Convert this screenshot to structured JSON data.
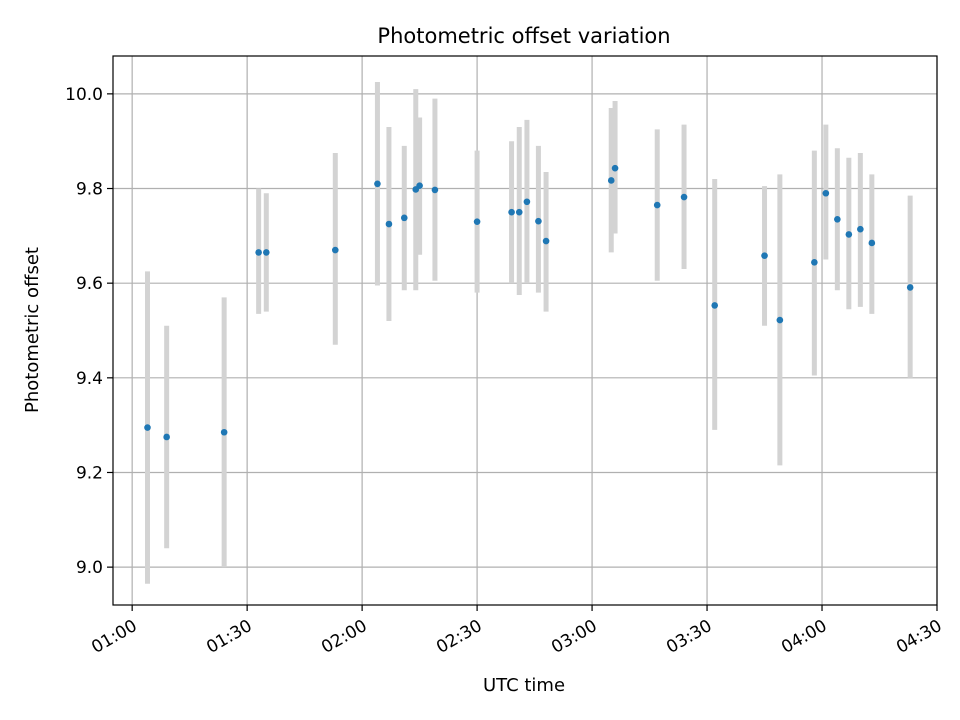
{
  "chart_data": {
    "type": "scatter",
    "title": "Photometric offset variation",
    "xlabel": "UTC time",
    "ylabel": "Photometric offset",
    "x_ticks": [
      "01:00",
      "01:30",
      "02:00",
      "02:30",
      "03:00",
      "03:30",
      "04:00",
      "04:30"
    ],
    "y_ticks": [
      "9.0",
      "9.2",
      "9.4",
      "9.6",
      "9.8",
      "10.0"
    ],
    "xlim": [
      "00:55",
      "04:30"
    ],
    "ylim": [
      8.92,
      10.08
    ],
    "grid": true,
    "point_color": "#1f77b4",
    "errorbar_color": "#d3d3d3",
    "points": [
      {
        "x": "01:04",
        "y": 9.295,
        "lo": 8.965,
        "hi": 9.625
      },
      {
        "x": "01:09",
        "y": 9.275,
        "lo": 9.04,
        "hi": 9.51
      },
      {
        "x": "01:24",
        "y": 9.285,
        "lo": 9.0,
        "hi": 9.57
      },
      {
        "x": "01:33",
        "y": 9.665,
        "lo": 9.535,
        "hi": 9.8
      },
      {
        "x": "01:35",
        "y": 9.665,
        "lo": 9.54,
        "hi": 9.79
      },
      {
        "x": "01:53",
        "y": 9.67,
        "lo": 9.47,
        "hi": 9.875
      },
      {
        "x": "02:04",
        "y": 9.81,
        "lo": 9.595,
        "hi": 10.025
      },
      {
        "x": "02:07",
        "y": 9.725,
        "lo": 9.52,
        "hi": 9.93
      },
      {
        "x": "02:11",
        "y": 9.738,
        "lo": 9.585,
        "hi": 9.89
      },
      {
        "x": "02:14",
        "y": 9.798,
        "lo": 9.585,
        "hi": 10.01
      },
      {
        "x": "02:15",
        "y": 9.806,
        "lo": 9.66,
        "hi": 9.95
      },
      {
        "x": "02:19",
        "y": 9.797,
        "lo": 9.605,
        "hi": 9.99
      },
      {
        "x": "02:30",
        "y": 9.73,
        "lo": 9.58,
        "hi": 9.88
      },
      {
        "x": "02:39",
        "y": 9.75,
        "lo": 9.6,
        "hi": 9.9
      },
      {
        "x": "02:41",
        "y": 9.75,
        "lo": 9.575,
        "hi": 9.93
      },
      {
        "x": "02:43",
        "y": 9.772,
        "lo": 9.6,
        "hi": 9.945
      },
      {
        "x": "02:46",
        "y": 9.731,
        "lo": 9.58,
        "hi": 9.89
      },
      {
        "x": "02:48",
        "y": 9.689,
        "lo": 9.54,
        "hi": 9.835
      },
      {
        "x": "03:05",
        "y": 9.817,
        "lo": 9.665,
        "hi": 9.97
      },
      {
        "x": "03:06",
        "y": 9.843,
        "lo": 9.705,
        "hi": 9.985
      },
      {
        "x": "03:17",
        "y": 9.765,
        "lo": 9.605,
        "hi": 9.925
      },
      {
        "x": "03:24",
        "y": 9.782,
        "lo": 9.63,
        "hi": 9.935
      },
      {
        "x": "03:32",
        "y": 9.553,
        "lo": 9.29,
        "hi": 9.82
      },
      {
        "x": "03:45",
        "y": 9.658,
        "lo": 9.51,
        "hi": 9.805
      },
      {
        "x": "03:49",
        "y": 9.522,
        "lo": 9.215,
        "hi": 9.83
      },
      {
        "x": "03:58",
        "y": 9.644,
        "lo": 9.405,
        "hi": 9.88
      },
      {
        "x": "04:01",
        "y": 9.79,
        "lo": 9.65,
        "hi": 9.935
      },
      {
        "x": "04:04",
        "y": 9.735,
        "lo": 9.585,
        "hi": 9.885
      },
      {
        "x": "04:07",
        "y": 9.703,
        "lo": 9.545,
        "hi": 9.865
      },
      {
        "x": "04:10",
        "y": 9.714,
        "lo": 9.55,
        "hi": 9.875
      },
      {
        "x": "04:13",
        "y": 9.685,
        "lo": 9.535,
        "hi": 9.83
      },
      {
        "x": "04:23",
        "y": 9.591,
        "lo": 9.4,
        "hi": 9.785
      }
    ]
  }
}
